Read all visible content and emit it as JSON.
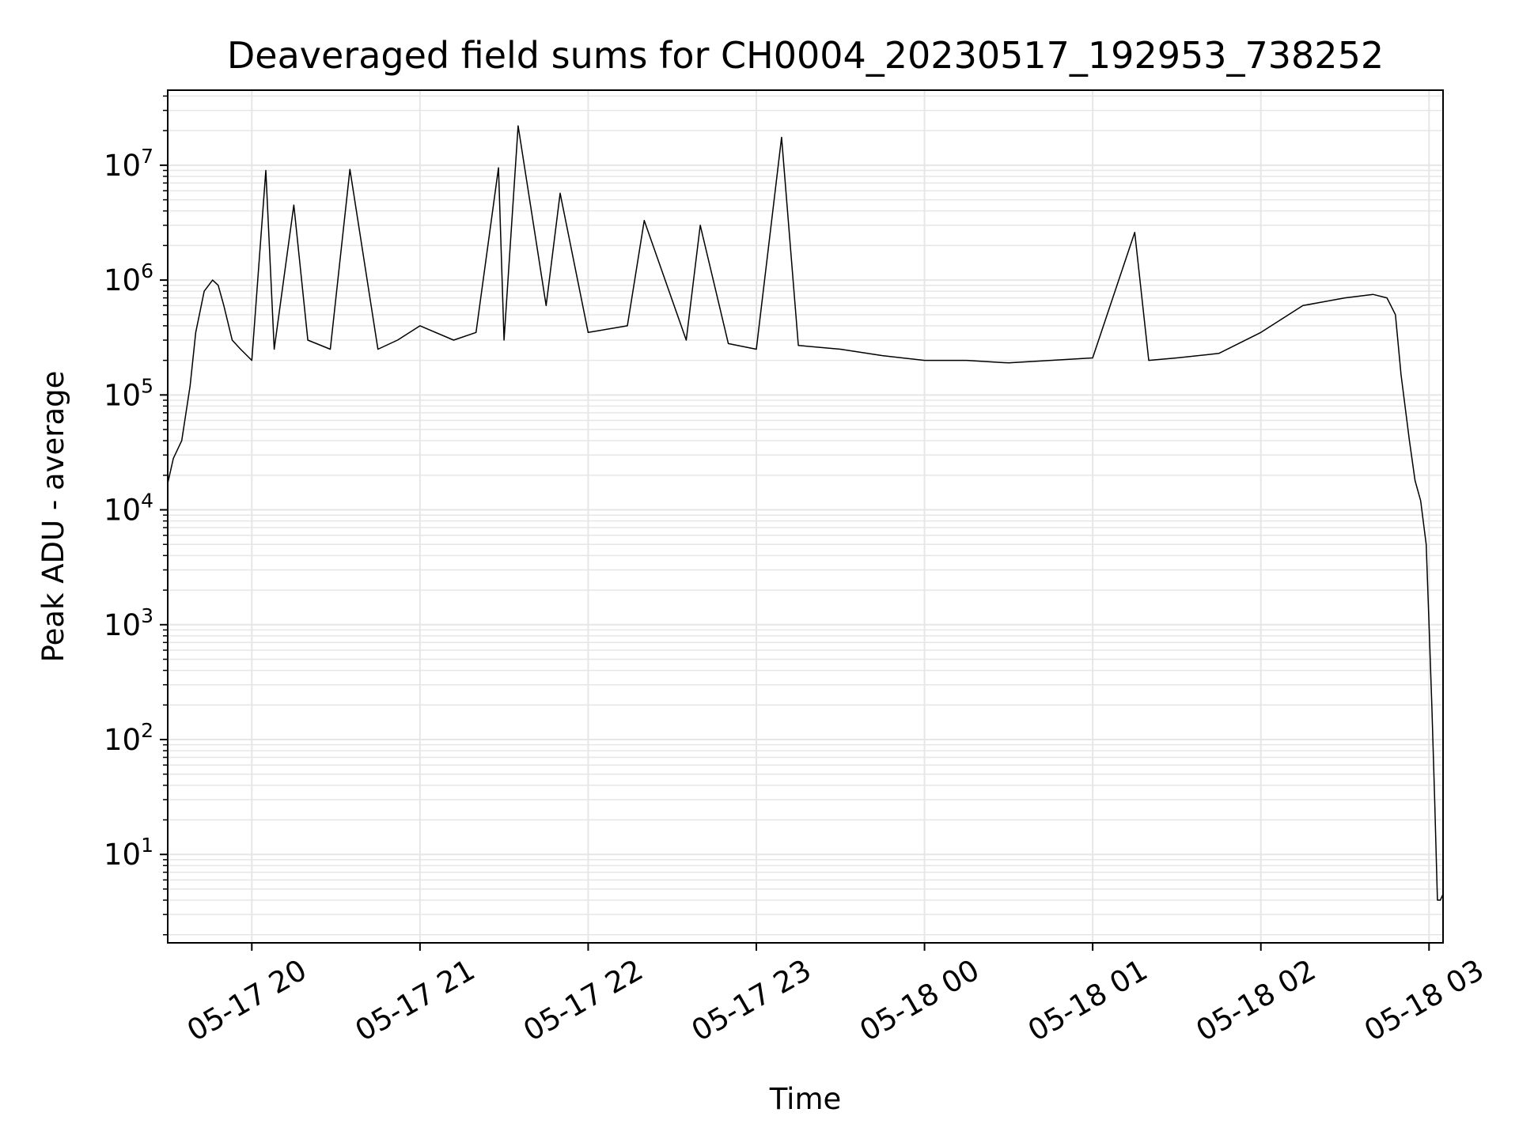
{
  "chart_data": {
    "type": "line",
    "title": "Deaveraged field sums for CH0004_20230517_192953_738252",
    "xlabel": "Time",
    "ylabel": "Peak ADU - average",
    "yscale": "log",
    "ylim": [
      1.7,
      45000000
    ],
    "xlim": [
      "05-17 19:30",
      "05-18 03:05"
    ],
    "grid": true,
    "grid_minor": true,
    "line_color": "#000000",
    "grid_color": "#e6e6e6",
    "x_ticks": [
      "05-17 20",
      "05-17 21",
      "05-17 22",
      "05-17 23",
      "05-18 00",
      "05-18 01",
      "05-18 02",
      "05-18 03"
    ],
    "y_ticks": [
      {
        "base": "10",
        "exp": "1"
      },
      {
        "base": "10",
        "exp": "2"
      },
      {
        "base": "10",
        "exp": "3"
      },
      {
        "base": "10",
        "exp": "4"
      },
      {
        "base": "10",
        "exp": "5"
      },
      {
        "base": "10",
        "exp": "6"
      },
      {
        "base": "10",
        "exp": "7"
      }
    ],
    "series": [
      {
        "x": [
          "05-17 19:30",
          "05-17 19:32",
          "05-17 19:35",
          "05-17 19:38",
          "05-17 19:40",
          "05-17 19:43",
          "05-17 19:46",
          "05-17 19:48",
          "05-17 19:50",
          "05-17 19:53",
          "05-17 19:56",
          "05-17 20:00",
          "05-17 20:05",
          "05-17 20:08",
          "05-17 20:15",
          "05-17 20:20",
          "05-17 20:28",
          "05-17 20:35",
          "05-17 20:45",
          "05-17 20:52",
          "05-17 21:00",
          "05-17 21:12",
          "05-17 21:20",
          "05-17 21:28",
          "05-17 21:30",
          "05-17 21:35",
          "05-17 21:45",
          "05-17 21:50",
          "05-17 22:00",
          "05-17 22:14",
          "05-17 22:20",
          "05-17 22:35",
          "05-17 22:40",
          "05-17 22:50",
          "05-17 23:00",
          "05-17 23:09",
          "05-17 23:15",
          "05-17 23:30",
          "05-17 23:45",
          "05-18 00:00",
          "05-18 00:15",
          "05-18 00:30",
          "05-18 00:45",
          "05-18 01:00",
          "05-18 01:15",
          "05-18 01:20",
          "05-18 01:30",
          "05-18 01:45",
          "05-18 02:00",
          "05-18 02:15",
          "05-18 02:30",
          "05-18 02:40",
          "05-18 02:45",
          "05-18 02:48",
          "05-18 02:50",
          "05-18 02:53",
          "05-18 02:55",
          "05-18 02:57",
          "05-18 02:59",
          "05-18 03:00",
          "05-18 03:01",
          "05-18 03:02",
          "05-18 03:03",
          "05-18 03:04",
          "05-18 03:05"
        ],
        "y": [
          17000,
          28000,
          40000,
          120000,
          350000,
          800000,
          1000000,
          900000,
          600000,
          300000,
          250000,
          200000,
          9000000,
          250000,
          4500000,
          300000,
          250000,
          9200000,
          250000,
          300000,
          400000,
          300000,
          350000,
          9500000,
          300000,
          22000000,
          600000,
          5700000,
          350000,
          400000,
          3300000,
          300000,
          3000000,
          280000,
          250000,
          17500000,
          270000,
          250000,
          220000,
          200000,
          200000,
          190000,
          200000,
          210000,
          2600000,
          200000,
          210000,
          230000,
          350000,
          600000,
          700000,
          750000,
          700000,
          500000,
          150000,
          40000,
          18000,
          12000,
          5000,
          1000,
          200,
          30,
          4,
          4,
          4.5
        ]
      }
    ]
  }
}
